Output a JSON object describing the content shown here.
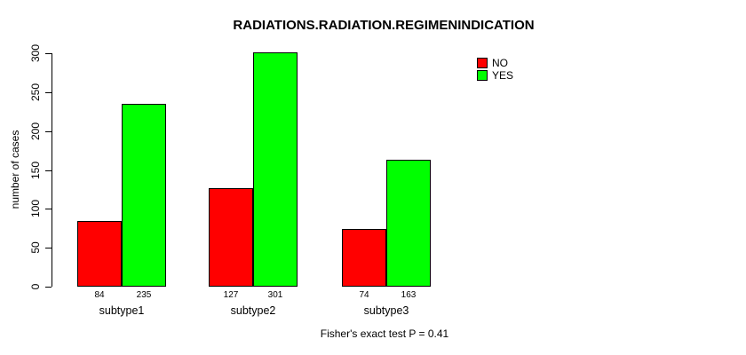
{
  "chart_data": {
    "type": "bar",
    "title": "RADIATIONS.RADIATION.REGIMENINDICATION",
    "categories": [
      "subtype1",
      "subtype2",
      "subtype3"
    ],
    "series": [
      {
        "name": "NO",
        "color": "#ff0000",
        "values": [
          84,
          127,
          74
        ]
      },
      {
        "name": "YES",
        "color": "#00ff00",
        "values": [
          235,
          301,
          163
        ]
      }
    ],
    "xlabel": "",
    "ylabel": "number of cases",
    "ylim": [
      0,
      300
    ],
    "yticks": [
      0,
      50,
      100,
      150,
      200,
      250,
      300
    ],
    "bar_value_labels": [
      [
        "84",
        "235"
      ],
      [
        "127",
        "301"
      ],
      [
        "74",
        "163"
      ]
    ],
    "grid": false,
    "legend_position": "top-right",
    "annotation": "Fisher's exact test P = 0.41"
  }
}
